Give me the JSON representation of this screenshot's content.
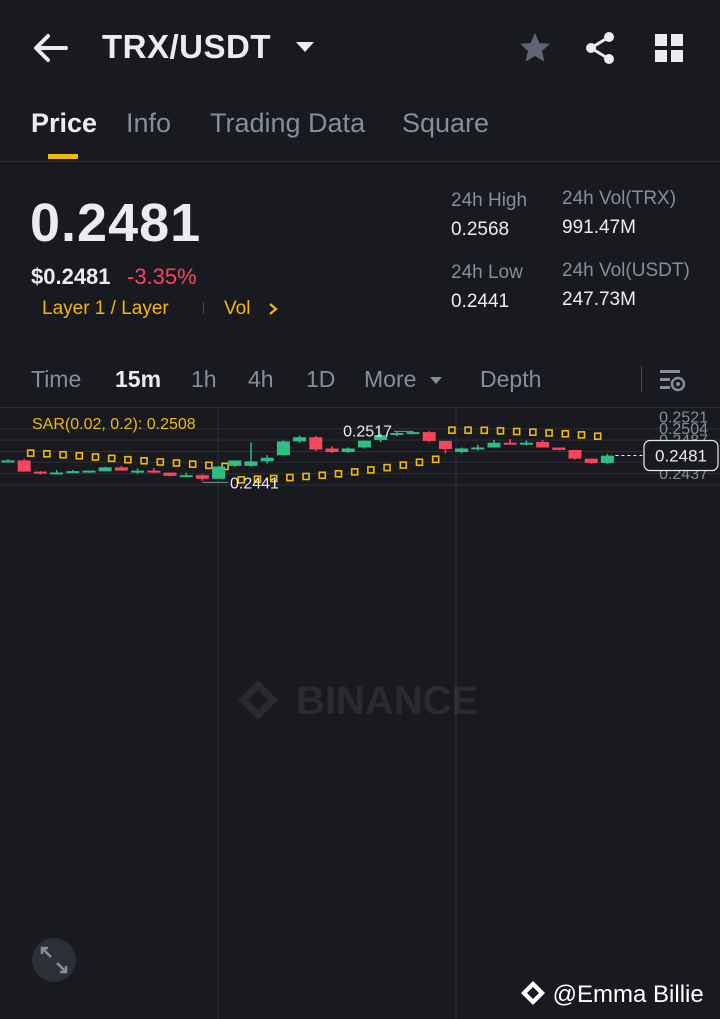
{
  "header": {
    "pair": "TRX/USDT",
    "icons": [
      "back-arrow-icon",
      "caret-down-icon",
      "star-icon",
      "share-icon",
      "grid-icon"
    ]
  },
  "tabs": [
    {
      "label": "Price",
      "active": true
    },
    {
      "label": "Info",
      "active": false
    },
    {
      "label": "Trading Data",
      "active": false
    },
    {
      "label": "Square",
      "active": false
    }
  ],
  "ticker": {
    "last_price": "0.2481",
    "usd_price": "$0.2481",
    "change": "-3.35%",
    "tag_layer": "Layer 1 / Layer",
    "tag_vol": "Vol",
    "high_label": "24h High",
    "high_value": "0.2568",
    "low_label": "24h Low",
    "low_value": "0.2441",
    "vol_trx_label": "24h Vol(TRX)",
    "vol_trx_value": "991.47M",
    "vol_usdt_label": "24h Vol(USDT)",
    "vol_usdt_value": "247.73M"
  },
  "timeframes": {
    "items": [
      {
        "label": "Time",
        "active": false
      },
      {
        "label": "15m",
        "active": true
      },
      {
        "label": "1h",
        "active": false
      },
      {
        "label": "4h",
        "active": false
      },
      {
        "label": "1D",
        "active": false
      },
      {
        "label": "More",
        "active": false
      },
      {
        "label": "Depth",
        "active": false
      }
    ]
  },
  "indicator": {
    "sar_label": "SAR(0.02, 0.2): 0.2508"
  },
  "chart_data": {
    "type": "candlestick",
    "y_ticks": [
      "0.2521",
      "0.2504",
      "0.2487",
      "0.2471",
      "0.2454",
      "0.2437"
    ],
    "ylim": [
      0.2437,
      0.2528
    ],
    "current_price": "0.2481",
    "high_marker": "0.2517",
    "low_marker": "0.2441",
    "watermark": "BINANCE",
    "candles": [
      {
        "o": 0.24737,
        "h": 0.24757,
        "l": 0.24737,
        "c": 0.24737
      },
      {
        "o": 0.24737,
        "h": 0.24757,
        "l": 0.24571,
        "c": 0.24571
      },
      {
        "o": 0.24571,
        "h": 0.24578,
        "l": 0.24525,
        "c": 0.24543
      },
      {
        "o": 0.24558,
        "h": 0.24594,
        "l": 0.24534,
        "c": 0.24558
      },
      {
        "o": 0.24558,
        "h": 0.24594,
        "l": 0.24551,
        "c": 0.24578
      },
      {
        "o": 0.24568,
        "h": 0.24585,
        "l": 0.24551,
        "c": 0.24585
      },
      {
        "o": 0.24575,
        "h": 0.24639,
        "l": 0.24575,
        "c": 0.24634
      },
      {
        "o": 0.24634,
        "h": 0.24653,
        "l": 0.24585,
        "c": 0.24585
      },
      {
        "o": 0.24585,
        "h": 0.24619,
        "l": 0.2454,
        "c": 0.24585
      },
      {
        "o": 0.24585,
        "h": 0.24624,
        "l": 0.24551,
        "c": 0.24555
      },
      {
        "o": 0.24555,
        "h": 0.24555,
        "l": 0.245,
        "c": 0.24507
      },
      {
        "o": 0.24507,
        "h": 0.24555,
        "l": 0.24497,
        "c": 0.24517
      },
      {
        "o": 0.24517,
        "h": 0.24528,
        "l": 0.24431,
        "c": 0.24463
      },
      {
        "o": 0.24463,
        "h": 0.24656,
        "l": 0.24463,
        "c": 0.24646
      },
      {
        "o": 0.24656,
        "h": 0.24737,
        "l": 0.24646,
        "c": 0.24737
      },
      {
        "o": 0.24656,
        "h": 0.25004,
        "l": 0.24646,
        "c": 0.24724
      },
      {
        "o": 0.24724,
        "h": 0.24814,
        "l": 0.24695,
        "c": 0.24777
      },
      {
        "o": 0.24814,
        "h": 0.25035,
        "l": 0.24814,
        "c": 0.25021
      },
      {
        "o": 0.25021,
        "h": 0.25108,
        "l": 0.24997,
        "c": 0.25083
      },
      {
        "o": 0.25083,
        "h": 0.25101,
        "l": 0.24875,
        "c": 0.24899
      },
      {
        "o": 0.24915,
        "h": 0.24948,
        "l": 0.24848,
        "c": 0.24862
      },
      {
        "o": 0.24862,
        "h": 0.2493,
        "l": 0.24848,
        "c": 0.24915
      },
      {
        "o": 0.2493,
        "h": 0.25035,
        "l": 0.24915,
        "c": 0.25031
      },
      {
        "o": 0.25042,
        "h": 0.25138,
        "l": 0.25011,
        "c": 0.25111
      },
      {
        "o": 0.25125,
        "h": 0.25165,
        "l": 0.251,
        "c": 0.25145
      },
      {
        "o": 0.25145,
        "h": 0.25172,
        "l": 0.25125,
        "c": 0.25159
      },
      {
        "o": 0.25159,
        "h": 0.25172,
        "l": 0.25014,
        "c": 0.25028
      },
      {
        "o": 0.25028,
        "h": 0.25028,
        "l": 0.24842,
        "c": 0.24907
      },
      {
        "o": 0.24862,
        "h": 0.2493,
        "l": 0.24842,
        "c": 0.24915
      },
      {
        "o": 0.24915,
        "h": 0.2497,
        "l": 0.24887,
        "c": 0.2493
      },
      {
        "o": 0.2493,
        "h": 0.25042,
        "l": 0.2493,
        "c": 0.25001
      },
      {
        "o": 0.25001,
        "h": 0.25055,
        "l": 0.24987,
        "c": 0.24994
      },
      {
        "o": 0.24994,
        "h": 0.25035,
        "l": 0.2496,
        "c": 0.25001
      },
      {
        "o": 0.25011,
        "h": 0.25042,
        "l": 0.2493,
        "c": 0.2493
      },
      {
        "o": 0.2493,
        "h": 0.2493,
        "l": 0.24887,
        "c": 0.24893
      },
      {
        "o": 0.24893,
        "h": 0.24893,
        "l": 0.2475,
        "c": 0.24764
      },
      {
        "o": 0.24764,
        "h": 0.24764,
        "l": 0.24688,
        "c": 0.247
      },
      {
        "o": 0.247,
        "h": 0.24835,
        "l": 0.24688,
        "c": 0.24808
      }
    ],
    "sar_points": [
      0.24846,
      0.24836,
      0.24822,
      0.24806,
      0.24788,
      0.24768,
      0.24748,
      0.24732,
      0.24714,
      0.24698,
      0.24682,
      0.24664,
      0.24648,
      0.24448,
      0.24458,
      0.24468,
      0.24482,
      0.24498,
      0.24516,
      0.24538,
      0.24566,
      0.24596,
      0.2463,
      0.24668,
      0.2471,
      0.24754,
      0.25188,
      0.25188,
      0.25186,
      0.25178,
      0.25168,
      0.25158,
      0.25146,
      0.25134,
      0.25118,
      0.25098
    ]
  },
  "footer": {
    "watermark_user": "@Emma Billie",
    "icons": [
      "expand-icon",
      "binance-logo-icon"
    ]
  },
  "colors": {
    "up": "#2ebd85",
    "down": "#f6465d",
    "accent": "#f0b90b",
    "background": "#181a20"
  }
}
